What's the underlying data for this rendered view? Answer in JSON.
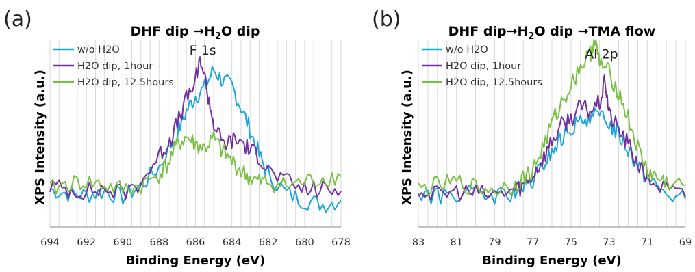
{
  "chart_data": [
    {
      "type": "line",
      "panel_label": "(a)",
      "title_parts": [
        "DHF dip →H",
        "2",
        "O dip"
      ],
      "xlabel": "Binding Energy (eV)",
      "ylabel": "XPS Intensity (a.u.)",
      "xlim": [
        694,
        678
      ],
      "x_reversed": true,
      "ylim": [
        0,
        1
      ],
      "x_ticks": [
        694,
        692,
        690,
        688,
        686,
        684,
        682,
        680,
        678
      ],
      "grid": "vertical",
      "legend_position": "top-left",
      "annotation": "F 1s",
      "annotation_x": 685.6,
      "annotation_y": 0.92,
      "series": [
        {
          "name": "w/o H2O",
          "color": "#1BA6D9",
          "x": [
            694,
            693,
            692,
            691,
            690,
            689,
            688,
            687,
            686.5,
            686,
            685.5,
            685,
            684.5,
            684,
            683.5,
            683,
            682.5,
            682,
            681,
            680,
            679,
            678
          ],
          "y": [
            0.2,
            0.18,
            0.17,
            0.19,
            0.16,
            0.22,
            0.32,
            0.5,
            0.62,
            0.7,
            0.74,
            0.84,
            0.78,
            0.75,
            0.64,
            0.52,
            0.38,
            0.28,
            0.18,
            0.14,
            0.12,
            0.14
          ]
        },
        {
          "name": "H2O dip, 1hour",
          "color": "#7030A0",
          "x": [
            694,
            693,
            692,
            691,
            690,
            689,
            688,
            687.5,
            687,
            686.5,
            686,
            685.7,
            685.3,
            685,
            684.5,
            684,
            683.5,
            683,
            682.5,
            682,
            681,
            680,
            679,
            678
          ],
          "y": [
            0.22,
            0.2,
            0.19,
            0.2,
            0.18,
            0.24,
            0.38,
            0.45,
            0.55,
            0.68,
            0.78,
            0.9,
            0.7,
            0.55,
            0.44,
            0.46,
            0.46,
            0.41,
            0.38,
            0.3,
            0.24,
            0.2,
            0.2,
            0.19
          ]
        },
        {
          "name": "H2O dip, 12.5hours",
          "color": "#7AC143",
          "x": [
            694,
            693,
            692,
            691,
            690,
            689,
            688,
            687.5,
            687,
            686.5,
            686,
            685.5,
            685,
            684.5,
            684,
            683.5,
            683,
            682.5,
            682,
            681,
            680,
            679,
            678
          ],
          "y": [
            0.2,
            0.23,
            0.24,
            0.22,
            0.2,
            0.22,
            0.28,
            0.34,
            0.44,
            0.48,
            0.44,
            0.42,
            0.47,
            0.4,
            0.35,
            0.3,
            0.26,
            0.24,
            0.24,
            0.22,
            0.24,
            0.26,
            0.27
          ]
        }
      ]
    },
    {
      "type": "line",
      "panel_label": "(b)",
      "title_parts": [
        "DHF dip→H",
        "2",
        "O dip →TMA flow"
      ],
      "xlabel": "Binding Energy (eV)",
      "ylabel": "XPS Intensity (a.u.)",
      "xlim": [
        83,
        69
      ],
      "x_reversed": true,
      "ylim": [
        0,
        1
      ],
      "x_ticks": [
        83,
        81,
        79,
        77,
        75,
        73,
        71,
        69
      ],
      "grid": "vertical",
      "legend_position": "top-left",
      "annotation": "Al 2p",
      "annotation_x": 73.4,
      "annotation_y": 0.9,
      "series": [
        {
          "name": "w/o H2O",
          "color": "#1BA6D9",
          "x": [
            83,
            82,
            81,
            80,
            79,
            78,
            77.5,
            77,
            76.5,
            76,
            75.5,
            75,
            74.5,
            74,
            73.5,
            73,
            72.5,
            72,
            71.5,
            71,
            70,
            69
          ],
          "y": [
            0.18,
            0.16,
            0.18,
            0.17,
            0.16,
            0.18,
            0.2,
            0.24,
            0.32,
            0.4,
            0.47,
            0.53,
            0.55,
            0.6,
            0.58,
            0.56,
            0.5,
            0.42,
            0.34,
            0.26,
            0.18,
            0.15
          ]
        },
        {
          "name": "H2O dip, 1hour",
          "color": "#7030A0",
          "x": [
            83,
            82,
            81,
            80,
            79,
            78,
            77.5,
            77,
            76.5,
            76,
            75.5,
            75,
            74.5,
            74,
            73.5,
            73.2,
            73,
            72.5,
            72,
            71.5,
            71,
            70,
            69
          ],
          "y": [
            0.2,
            0.17,
            0.19,
            0.18,
            0.17,
            0.2,
            0.22,
            0.28,
            0.36,
            0.46,
            0.54,
            0.58,
            0.64,
            0.62,
            0.66,
            0.78,
            0.6,
            0.52,
            0.44,
            0.34,
            0.26,
            0.2,
            0.16
          ]
        },
        {
          "name": "H2O dip, 12.5hours",
          "color": "#7AC143",
          "x": [
            83,
            82,
            81,
            80,
            79,
            78,
            77.5,
            77,
            76.5,
            76,
            75.5,
            75,
            74.5,
            74,
            73.8,
            73.5,
            73,
            72.5,
            72,
            71.5,
            71,
            70.5,
            70,
            69
          ],
          "y": [
            0.2,
            0.22,
            0.24,
            0.21,
            0.2,
            0.22,
            0.26,
            0.3,
            0.42,
            0.55,
            0.66,
            0.76,
            0.86,
            0.92,
            1.0,
            0.88,
            0.82,
            0.72,
            0.58,
            0.42,
            0.3,
            0.26,
            0.24,
            0.22
          ]
        }
      ]
    }
  ]
}
